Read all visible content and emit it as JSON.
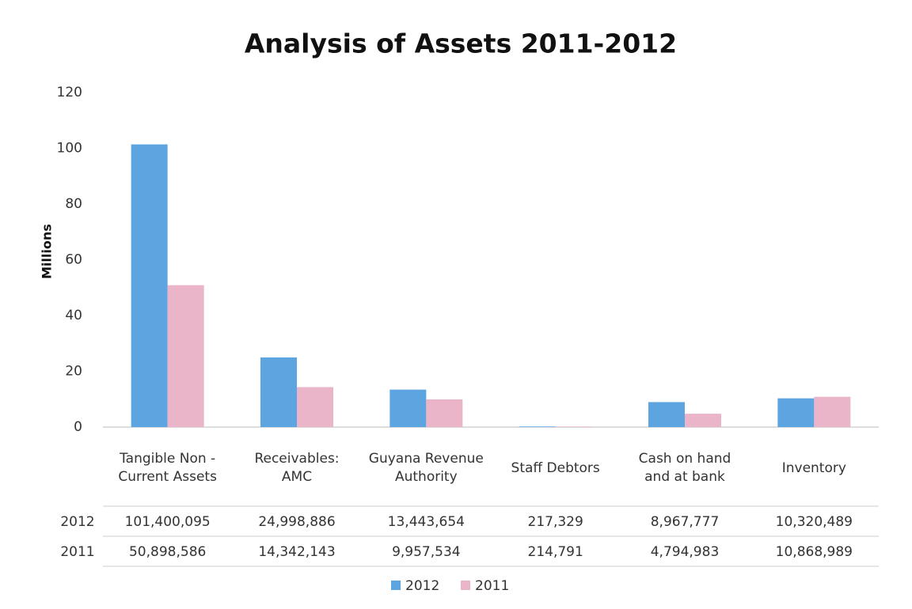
{
  "chart_data": {
    "type": "bar",
    "title": "Analysis of Assets 2011-2012",
    "y_label": "Millions",
    "categories": [
      "Tangible Non - Current Assets",
      "Receivables: AMC",
      "Guyana Revenue Authority",
      "Staff Debtors",
      "Cash on hand and at bank",
      "Inventory"
    ],
    "series": [
      {
        "name": "2012",
        "color": "#5da5e0",
        "values": [
          101.400095,
          24.998886,
          13.443654,
          0.217329,
          8.967777,
          10.320489
        ],
        "value_labels": [
          "101,400,095",
          "24,998,886",
          "13,443,654",
          "217,329",
          "8,967,777",
          "10,320,489"
        ]
      },
      {
        "name": "2011",
        "color": "#eab4c9",
        "values": [
          50.898586,
          14.342143,
          9.957534,
          0.214791,
          4.794983,
          10.868989
        ],
        "value_labels": [
          "50,898,586",
          "14,342,143",
          "9,957,534",
          "214,791",
          "4,794,983",
          "10,868,989"
        ]
      }
    ],
    "ylim": [
      0,
      120
    ],
    "yticks": [
      0,
      20,
      40,
      60,
      80,
      100,
      120
    ],
    "grid": false,
    "legend": "bottom"
  }
}
